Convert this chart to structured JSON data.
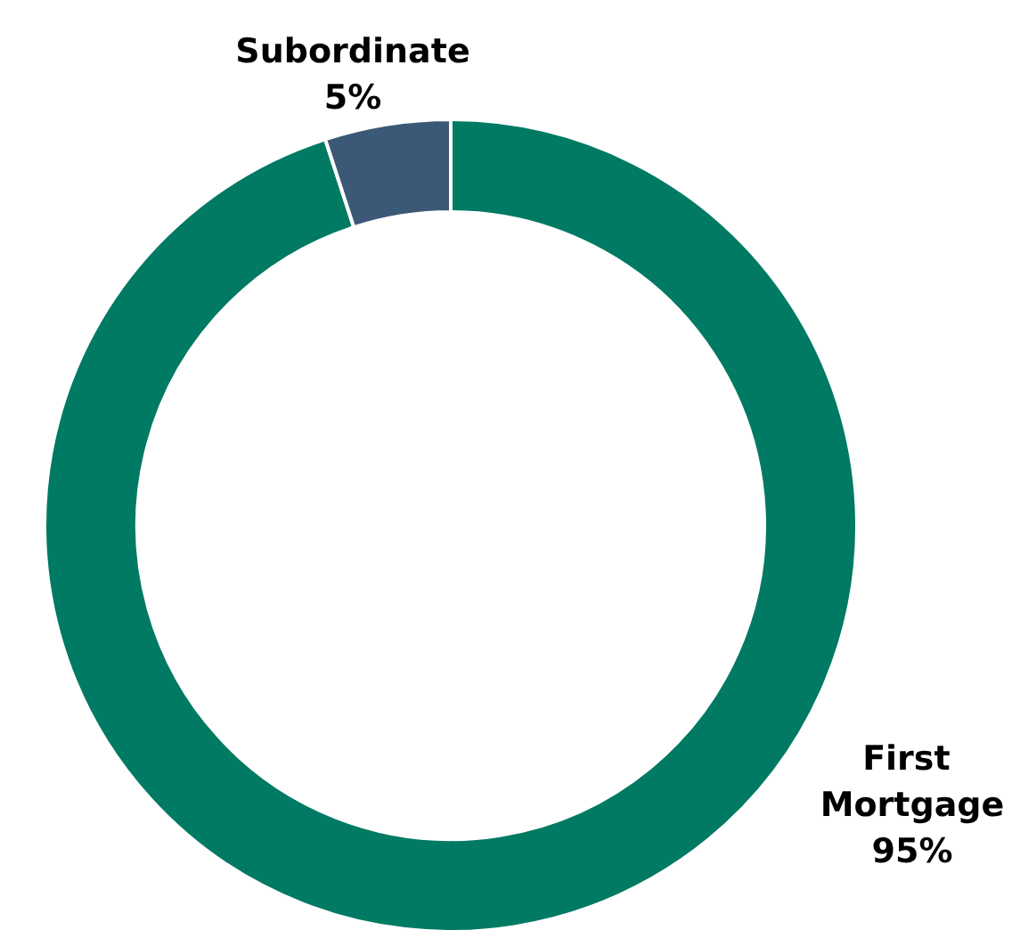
{
  "chart_data": {
    "type": "donut",
    "categories": [
      "First Mortgage",
      "Subordinate"
    ],
    "values": [
      95,
      5
    ],
    "colors": [
      "#007a63",
      "#3b5977"
    ],
    "value_labels": [
      "95%",
      "5%"
    ],
    "legend": false
  }
}
